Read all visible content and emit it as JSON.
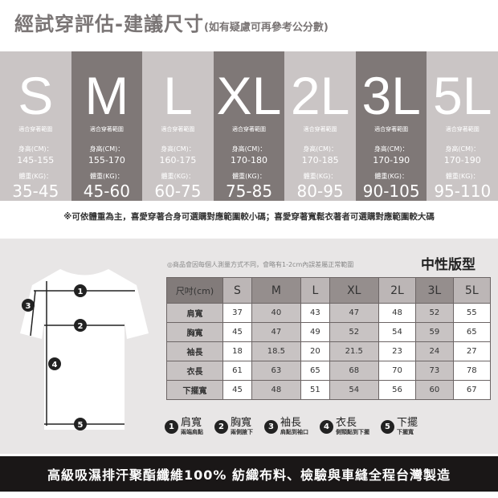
{
  "title": {
    "main": "經試穿評估-建議尺寸",
    "sub": "(如有疑慮可再參考公分數)"
  },
  "sizes": [
    {
      "size": "S",
      "fit": "適合穿著範圍",
      "height_label": "身高(CM)：",
      "height": "145-155",
      "weight_label": "體重(KG)：",
      "weight": "35-45",
      "tone": "light"
    },
    {
      "size": "M",
      "fit": "適合穿著範圍",
      "height_label": "身高(CM)：",
      "height": "155-170",
      "weight_label": "體重(KG)：",
      "weight": "45-60",
      "tone": "dark"
    },
    {
      "size": "L",
      "fit": "適合穿著範圍",
      "height_label": "身高(CM)：",
      "height": "160-175",
      "weight_label": "體重(KG)：",
      "weight": "60-75",
      "tone": "light"
    },
    {
      "size": "XL",
      "fit": "適合穿著範圍",
      "height_label": "身高(CM)：",
      "height": "170-180",
      "weight_label": "體重(KG)：",
      "weight": "75-85",
      "tone": "dark"
    },
    {
      "size": "2L",
      "fit": "適合穿著範圍",
      "height_label": "身高(CM)：",
      "height": "170-185",
      "weight_label": "體重(KG)：",
      "weight": "80-95",
      "tone": "light"
    },
    {
      "size": "3L",
      "fit": "適合穿著範圍",
      "height_label": "身高(CM)：",
      "height": "170-190",
      "weight_label": "體重(KG)：",
      "weight": "90-105",
      "tone": "dark"
    },
    {
      "size": "5L",
      "fit": "適合穿著範圍",
      "height_label": "身高(CM)：",
      "height": "170-190",
      "weight_label": "體重(KG)：",
      "weight": "95-110",
      "tone": "light"
    }
  ],
  "note": "※可依體重為主，喜愛穿著合身可選購對應範圍較小碼；喜愛穿著寬鬆衣著者可選購對應範圍較大碼",
  "disclaimer": "◎商品會因每個人測量方式不同，會略有1-2cm內誤差屬正常範圍",
  "fit_title": "中性版型",
  "table": {
    "header": [
      "尺吋(cm)",
      "S",
      "M",
      "L",
      "XL",
      "2L",
      "3L",
      "5L"
    ],
    "rows": [
      [
        "肩寬",
        "37",
        "40",
        "43",
        "47",
        "48",
        "52",
        "55"
      ],
      [
        "胸寬",
        "45",
        "47",
        "49",
        "52",
        "54",
        "59",
        "65"
      ],
      [
        "袖長",
        "18",
        "18.5",
        "20",
        "21.5",
        "23",
        "24",
        "27"
      ],
      [
        "衣長",
        "61",
        "63",
        "65",
        "68",
        "70",
        "73",
        "78"
      ],
      [
        "下擺寬",
        "45",
        "48",
        "51",
        "54",
        "56",
        "60",
        "67"
      ]
    ]
  },
  "legend": [
    {
      "n": "1",
      "name": "肩寬",
      "desc": "兩端肩點"
    },
    {
      "n": "2",
      "name": "胸寬",
      "desc": "兩側腋下"
    },
    {
      "n": "3",
      "name": "袖長",
      "desc": "肩點到袖口"
    },
    {
      "n": "4",
      "name": "衣長",
      "desc": "側頸點到下擺"
    },
    {
      "n": "5",
      "name": "下擺",
      "desc": "下擺寬"
    }
  ],
  "banner": "高級吸濕排汗聚酯纖維100% 紡織布料、檢驗與車縫全程台灣製造",
  "colors": {
    "light": "#cac5c5",
    "dark": "#7f7877",
    "banner": "#1a1717"
  }
}
